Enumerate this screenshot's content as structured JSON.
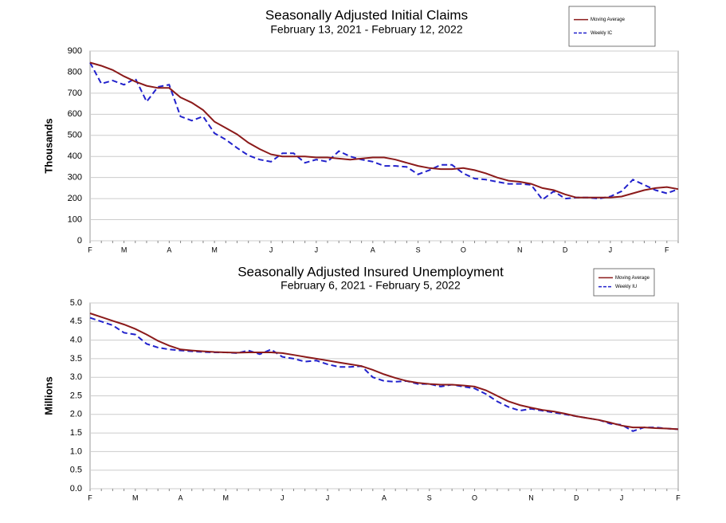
{
  "chart_data": [
    {
      "type": "line",
      "title": "Seasonally Adjusted Initial Claims",
      "subtitle": "February 13, 2021 - February 12, 2022",
      "ylabel": "Thousands",
      "categories": [
        "F",
        null,
        null,
        "M",
        null,
        null,
        null,
        "A",
        null,
        null,
        null,
        "M",
        null,
        null,
        null,
        null,
        "J",
        null,
        null,
        null,
        "J",
        null,
        null,
        null,
        null,
        "A",
        null,
        null,
        null,
        "S",
        null,
        null,
        null,
        "O",
        null,
        null,
        null,
        null,
        "N",
        null,
        null,
        null,
        "D",
        null,
        null,
        null,
        "J",
        null,
        null,
        null,
        null,
        "F",
        null
      ],
      "series": [
        {
          "name": "Moving Average",
          "color": "#8b1a1a",
          "dashed": false,
          "values": [
            845,
            830,
            810,
            780,
            755,
            735,
            725,
            725,
            680,
            655,
            620,
            565,
            535,
            505,
            465,
            435,
            410,
            400,
            400,
            400,
            395,
            395,
            390,
            385,
            390,
            395,
            395,
            385,
            370,
            355,
            345,
            340,
            340,
            345,
            335,
            320,
            300,
            285,
            280,
            270,
            250,
            240,
            220,
            205,
            205,
            205,
            205,
            210,
            225,
            240,
            250,
            255,
            245
          ]
        },
        {
          "name": "Weekly IC",
          "color": "#2222cc",
          "dashed": true,
          "values": [
            845,
            745,
            760,
            740,
            770,
            660,
            730,
            740,
            590,
            570,
            590,
            510,
            480,
            440,
            405,
            385,
            375,
            415,
            415,
            370,
            385,
            375,
            425,
            400,
            385,
            375,
            355,
            355,
            350,
            315,
            335,
            360,
            360,
            320,
            295,
            290,
            280,
            270,
            270,
            265,
            195,
            235,
            200,
            205,
            205,
            200,
            210,
            235,
            290,
            265,
            240,
            225,
            245
          ]
        }
      ],
      "ylim": [
        0,
        900
      ],
      "yticks": [
        0,
        100,
        200,
        300,
        400,
        500,
        600,
        700,
        800,
        900
      ],
      "grid": true
    },
    {
      "type": "line",
      "title": "Seasonally Adjusted Insured Unemployment",
      "subtitle": "February 6, 2021 - February 5, 2022",
      "ylabel": "Millions",
      "categories": [
        "F",
        null,
        null,
        null,
        "M",
        null,
        null,
        null,
        "A",
        null,
        null,
        null,
        "M",
        null,
        null,
        null,
        null,
        "J",
        null,
        null,
        null,
        "J",
        null,
        null,
        null,
        null,
        "A",
        null,
        null,
        null,
        "S",
        null,
        null,
        null,
        "O",
        null,
        null,
        null,
        null,
        "N",
        null,
        null,
        null,
        "D",
        null,
        null,
        null,
        "J",
        null,
        null,
        null,
        null,
        "F"
      ],
      "series": [
        {
          "name": "Moving Average",
          "color": "#8b1a1a",
          "dashed": false,
          "values": [
            4.72,
            4.62,
            4.52,
            4.42,
            4.3,
            4.15,
            3.98,
            3.85,
            3.75,
            3.72,
            3.7,
            3.68,
            3.67,
            3.66,
            3.67,
            3.67,
            3.67,
            3.65,
            3.6,
            3.55,
            3.5,
            3.45,
            3.4,
            3.35,
            3.3,
            3.2,
            3.08,
            2.98,
            2.9,
            2.85,
            2.82,
            2.8,
            2.8,
            2.78,
            2.75,
            2.65,
            2.5,
            2.35,
            2.25,
            2.18,
            2.12,
            2.08,
            2.02,
            1.95,
            1.9,
            1.85,
            1.78,
            1.7,
            1.65,
            1.65,
            1.63,
            1.62,
            1.6
          ]
        },
        {
          "name": "Weekly IU",
          "color": "#2222cc",
          "dashed": true,
          "values": [
            4.6,
            4.5,
            4.4,
            4.2,
            4.15,
            3.9,
            3.8,
            3.75,
            3.72,
            3.7,
            3.68,
            3.67,
            3.67,
            3.65,
            3.72,
            3.62,
            3.75,
            3.55,
            3.5,
            3.42,
            3.45,
            3.35,
            3.28,
            3.28,
            3.3,
            3.0,
            2.9,
            2.88,
            2.9,
            2.82,
            2.82,
            2.75,
            2.8,
            2.75,
            2.7,
            2.55,
            2.35,
            2.2,
            2.1,
            2.15,
            2.1,
            2.05,
            2.0,
            1.95,
            1.9,
            1.85,
            1.75,
            1.72,
            1.55,
            1.65,
            1.65,
            1.62,
            1.6
          ]
        }
      ],
      "ylim": [
        0,
        5
      ],
      "yticks": [
        {
          "value": 0,
          "label": "0.0"
        },
        0.5,
        {
          "value": 1,
          "label": "1.0"
        },
        1.5,
        {
          "value": 2,
          "label": "2.0"
        },
        2.5,
        {
          "value": 3,
          "label": "3.0"
        },
        3.5,
        {
          "value": 4,
          "label": "4.0"
        },
        4.5,
        {
          "value": 5,
          "label": "5.0"
        }
      ],
      "grid": true
    }
  ]
}
